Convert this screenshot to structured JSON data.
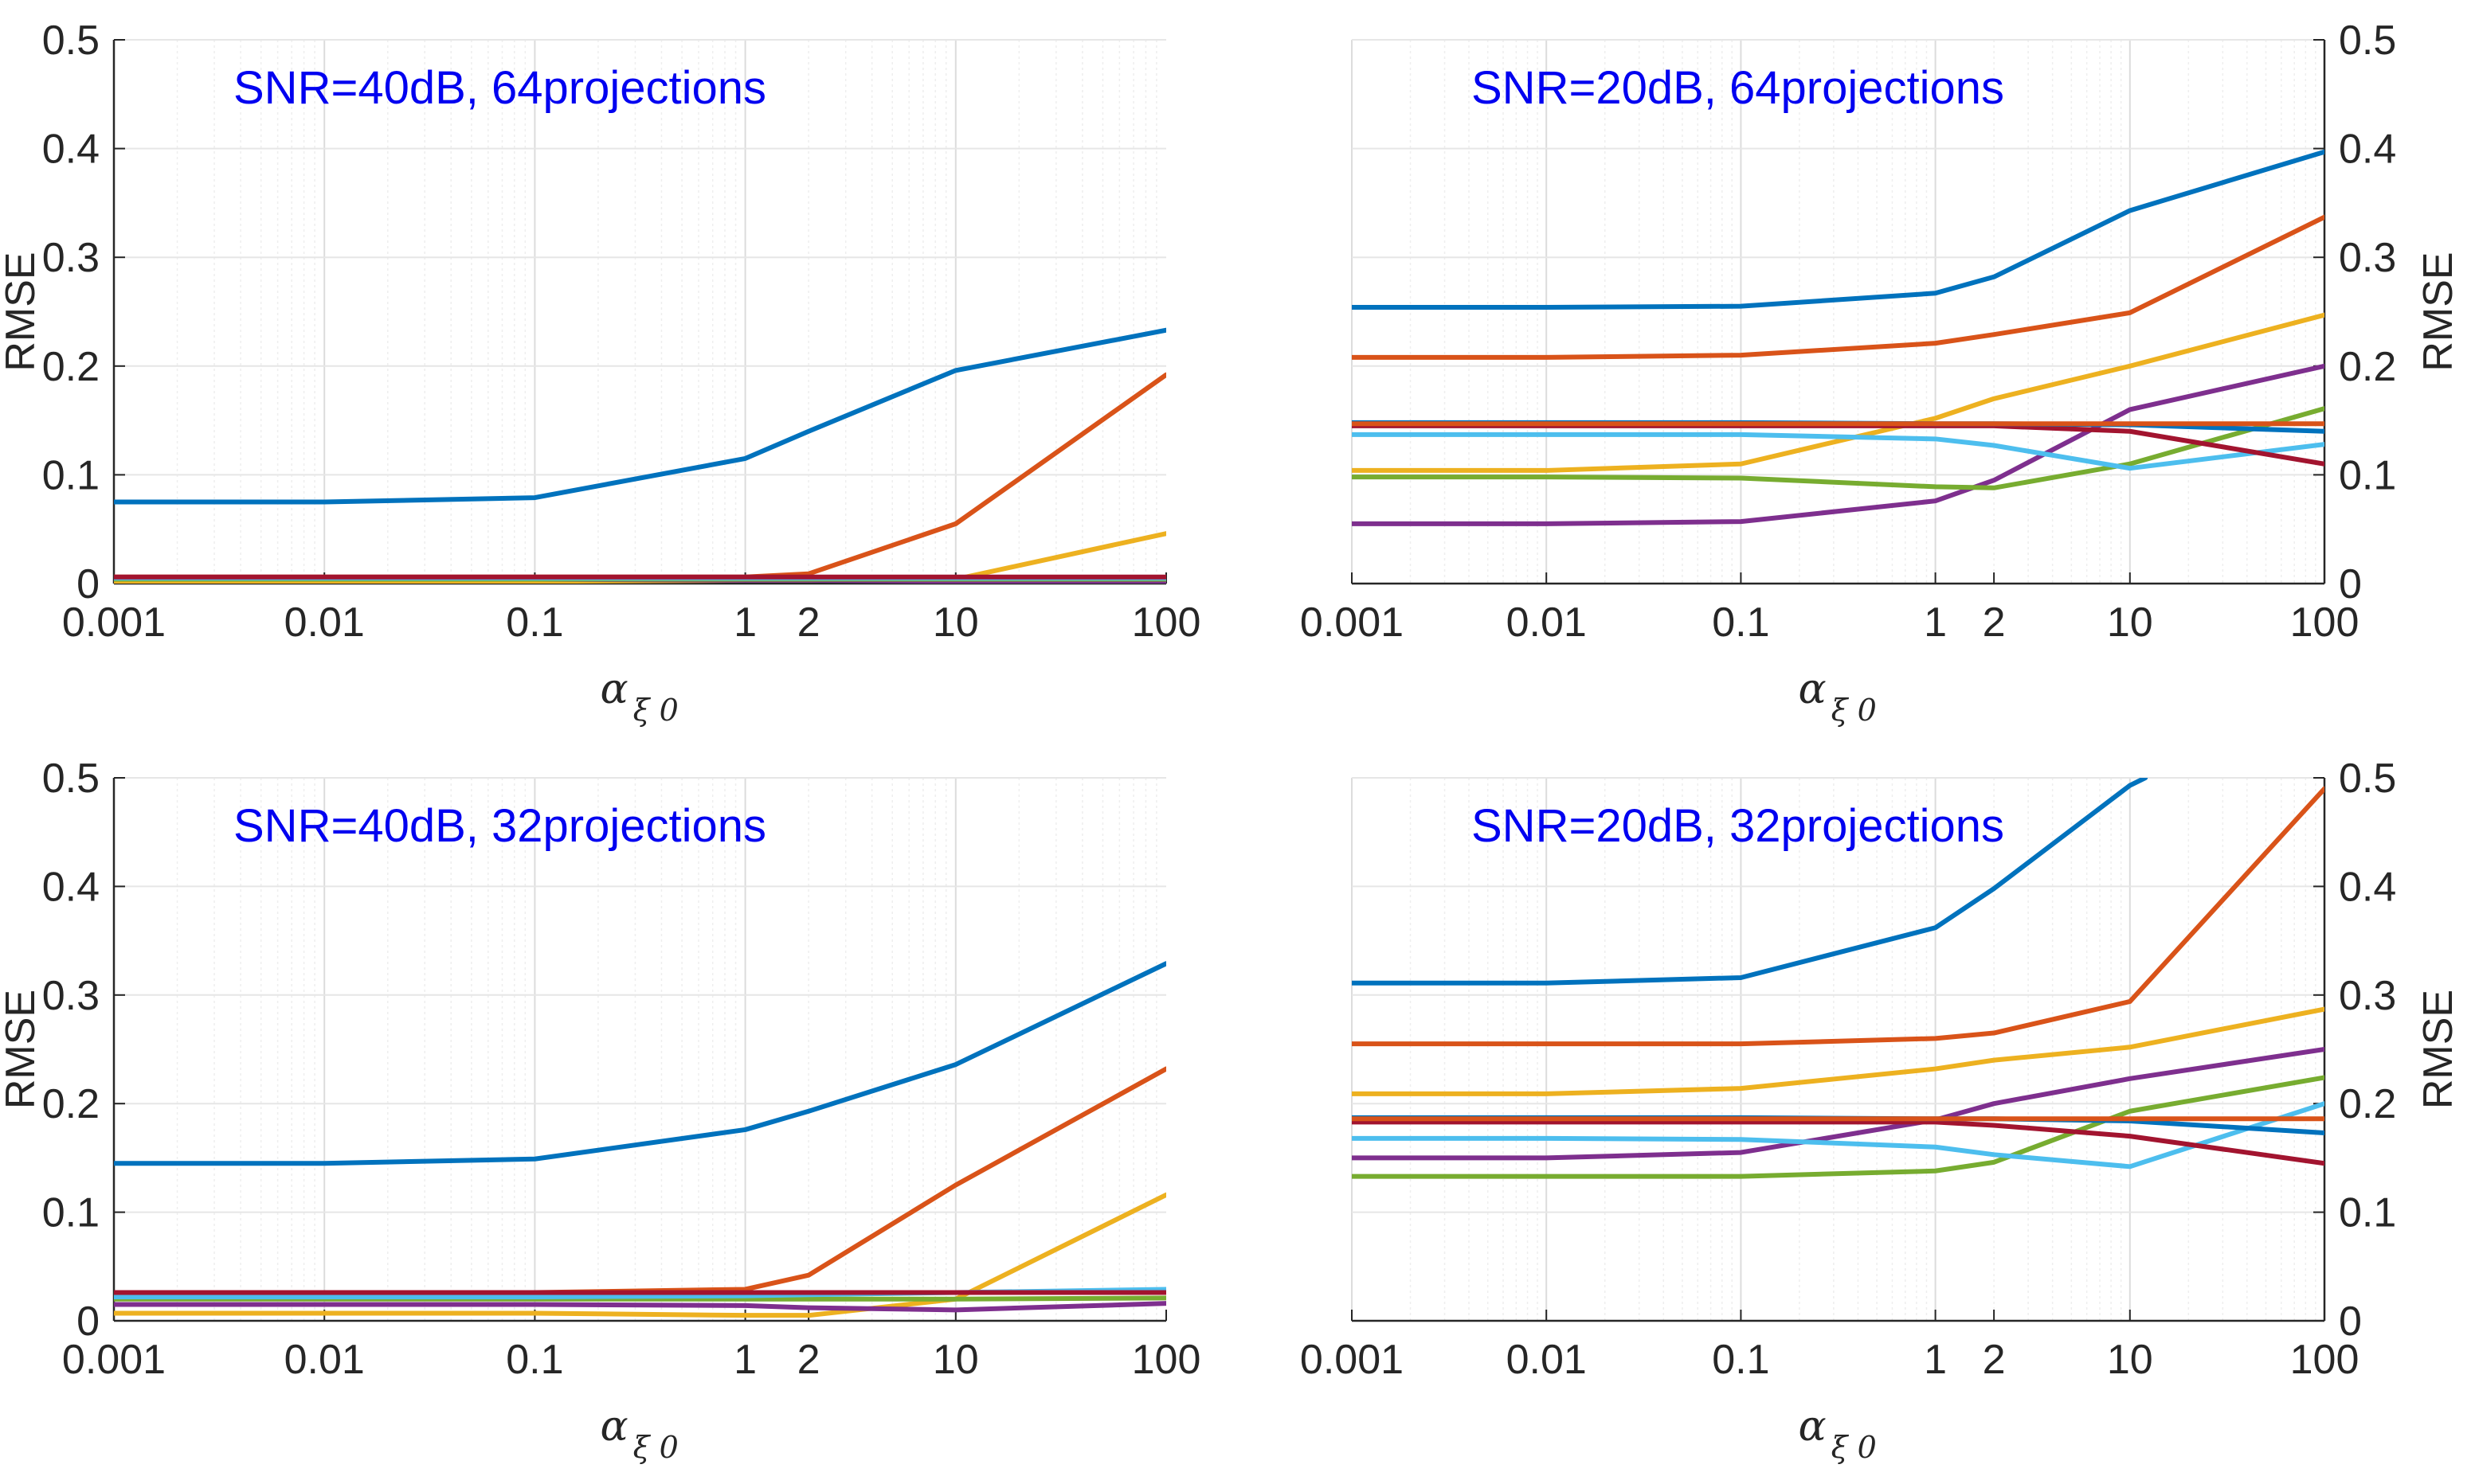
{
  "chart_data": [
    {
      "type": "line",
      "annotation": "SNR=40dB, 64projections",
      "xlabel": "α",
      "xlabel_sub": "ξ 0",
      "ylabel": "RMSE",
      "xscale": "log",
      "xlim": [
        0.001,
        100
      ],
      "ylim": [
        0,
        0.5
      ],
      "yaxis_side": "left",
      "xticks": [
        0.001,
        0.01,
        0.1,
        1,
        2,
        10,
        100
      ],
      "xticklabels": [
        "0.001",
        "0.01",
        "0.1",
        "1",
        "2",
        "10",
        "100"
      ],
      "yticks": [
        0,
        0.1,
        0.2,
        0.3,
        0.4,
        0.5
      ],
      "yticklabels": [
        "0",
        "0.1",
        "0.2",
        "0.3",
        "0.4",
        "0.5"
      ],
      "grid": true,
      "x": [
        0.001,
        0.01,
        0.1,
        1,
        2,
        10,
        100
      ],
      "series": [
        {
          "color": "#0072BD",
          "values": [
            0.075,
            0.075,
            0.079,
            0.115,
            0.14,
            0.196,
            0.233
          ]
        },
        {
          "color": "#D95319",
          "values": [
            0.006,
            0.006,
            0.006,
            0.006,
            0.009,
            0.055,
            0.192
          ]
        },
        {
          "color": "#EDB120",
          "values": [
            0.002,
            0.002,
            0.002,
            0.003,
            0.003,
            0.004,
            0.046
          ]
        },
        {
          "color": "#7E2F8E",
          "values": [
            0.004,
            0.004,
            0.004,
            0.003,
            0.003,
            0.002,
            0.002
          ]
        },
        {
          "color": "#77AC30",
          "values": [
            0.004,
            0.004,
            0.004,
            0.004,
            0.004,
            0.004,
            0.004
          ]
        },
        {
          "color": "#4DBEEE",
          "values": [
            0.005,
            0.005,
            0.005,
            0.005,
            0.005,
            0.005,
            0.005
          ]
        },
        {
          "color": "#A2142F",
          "values": [
            0.006,
            0.006,
            0.006,
            0.006,
            0.006,
            0.006,
            0.006
          ]
        }
      ]
    },
    {
      "type": "line",
      "annotation": "SNR=20dB, 64projections",
      "xlabel": "α",
      "xlabel_sub": "ξ 0",
      "ylabel": "RMSE",
      "xscale": "log",
      "xlim": [
        0.001,
        100
      ],
      "ylim": [
        0,
        0.5
      ],
      "yaxis_side": "right",
      "xticks": [
        0.001,
        0.01,
        0.1,
        1,
        2,
        10,
        100
      ],
      "xticklabels": [
        "0.001",
        "0.01",
        "0.1",
        "1",
        "2",
        "10",
        "100"
      ],
      "yticks": [
        0,
        0.1,
        0.2,
        0.3,
        0.4,
        0.5
      ],
      "yticklabels": [
        "0",
        "0.1",
        "0.2",
        "0.3",
        "0.4",
        "0.5"
      ],
      "grid": true,
      "x": [
        0.001,
        0.01,
        0.1,
        1,
        2,
        10,
        100
      ],
      "series": [
        {
          "color": "#0072BD",
          "values": [
            0.254,
            0.254,
            0.255,
            0.267,
            0.282,
            0.343,
            0.397
          ]
        },
        {
          "color": "#D95319",
          "values": [
            0.208,
            0.208,
            0.21,
            0.221,
            0.229,
            0.249,
            0.337
          ]
        },
        {
          "color": "#EDB120",
          "values": [
            0.104,
            0.104,
            0.11,
            0.152,
            0.17,
            0.2,
            0.247
          ]
        },
        {
          "color": "#7E2F8E",
          "values": [
            0.055,
            0.055,
            0.057,
            0.076,
            0.095,
            0.16,
            0.2
          ]
        },
        {
          "color": "#77AC30",
          "values": [
            0.098,
            0.098,
            0.097,
            0.089,
            0.088,
            0.11,
            0.161
          ]
        },
        {
          "color": "#4DBEEE",
          "values": [
            0.137,
            0.137,
            0.137,
            0.133,
            0.127,
            0.106,
            0.128
          ]
        },
        {
          "color": "#A2142F",
          "values": [
            0.145,
            0.145,
            0.145,
            0.145,
            0.145,
            0.14,
            0.11
          ]
        },
        {
          "color": "#0072BD",
          "values": [
            0.148,
            0.148,
            0.148,
            0.147,
            0.147,
            0.146,
            0.14
          ]
        },
        {
          "color": "#D95319",
          "values": [
            0.147,
            0.147,
            0.147,
            0.147,
            0.147,
            0.147,
            0.147
          ]
        }
      ]
    },
    {
      "type": "line",
      "annotation": "SNR=40dB, 32projections",
      "xlabel": "α",
      "xlabel_sub": "ξ 0",
      "ylabel": "RMSE",
      "xscale": "log",
      "xlim": [
        0.001,
        100
      ],
      "ylim": [
        0,
        0.5
      ],
      "yaxis_side": "left",
      "xticks": [
        0.001,
        0.01,
        0.1,
        1,
        2,
        10,
        100
      ],
      "xticklabels": [
        "0.001",
        "0.01",
        "0.1",
        "1",
        "2",
        "10",
        "100"
      ],
      "yticks": [
        0,
        0.1,
        0.2,
        0.3,
        0.4,
        0.5
      ],
      "yticklabels": [
        "0",
        "0.1",
        "0.2",
        "0.3",
        "0.4",
        "0.5"
      ],
      "grid": true,
      "x": [
        0.001,
        0.01,
        0.1,
        1,
        2,
        10,
        100
      ],
      "series": [
        {
          "color": "#0072BD",
          "values": [
            0.145,
            0.145,
            0.149,
            0.176,
            0.193,
            0.236,
            0.329
          ]
        },
        {
          "color": "#D95319",
          "values": [
            0.026,
            0.026,
            0.026,
            0.029,
            0.042,
            0.125,
            0.232
          ]
        },
        {
          "color": "#EDB120",
          "values": [
            0.007,
            0.007,
            0.007,
            0.005,
            0.005,
            0.02,
            0.116
          ]
        },
        {
          "color": "#7E2F8E",
          "values": [
            0.015,
            0.015,
            0.015,
            0.014,
            0.012,
            0.01,
            0.016
          ]
        },
        {
          "color": "#77AC30",
          "values": [
            0.02,
            0.02,
            0.02,
            0.02,
            0.02,
            0.02,
            0.021
          ]
        },
        {
          "color": "#4DBEEE",
          "values": [
            0.022,
            0.022,
            0.022,
            0.023,
            0.024,
            0.026,
            0.029
          ]
        },
        {
          "color": "#A2142F",
          "values": [
            0.026,
            0.026,
            0.026,
            0.026,
            0.026,
            0.026,
            0.026
          ]
        }
      ]
    },
    {
      "type": "line",
      "annotation": "SNR=20dB, 32projections",
      "xlabel": "α",
      "xlabel_sub": "ξ 0",
      "ylabel": "RMSE",
      "xscale": "log",
      "xlim": [
        0.001,
        100
      ],
      "ylim": [
        0,
        0.5
      ],
      "yaxis_side": "right",
      "xticks": [
        0.001,
        0.01,
        0.1,
        1,
        2,
        10,
        100
      ],
      "xticklabels": [
        "0.001",
        "0.01",
        "0.1",
        "1",
        "2",
        "10",
        "100"
      ],
      "yticks": [
        0,
        0.1,
        0.2,
        0.3,
        0.4,
        0.5
      ],
      "yticklabels": [
        "0",
        "0.1",
        "0.2",
        "0.3",
        "0.4",
        "0.5"
      ],
      "grid": true,
      "x": [
        0.001,
        0.01,
        0.1,
        1,
        2,
        10,
        12,
        100
      ],
      "series": [
        {
          "color": "#0072BD",
          "values": [
            0.311,
            0.311,
            0.316,
            0.362,
            0.398,
            0.493,
            0.5,
            null
          ]
        },
        {
          "color": "#D95319",
          "values": [
            0.255,
            0.255,
            0.255,
            0.26,
            0.265,
            0.294,
            null,
            0.49
          ]
        },
        {
          "color": "#EDB120",
          "values": [
            0.209,
            0.209,
            0.214,
            0.232,
            0.24,
            0.252,
            null,
            0.287
          ]
        },
        {
          "color": "#7E2F8E",
          "values": [
            0.15,
            0.15,
            0.155,
            0.185,
            0.2,
            0.223,
            null,
            0.25
          ]
        },
        {
          "color": "#77AC30",
          "values": [
            0.133,
            0.133,
            0.133,
            0.138,
            0.146,
            0.193,
            null,
            0.224
          ]
        },
        {
          "color": "#4DBEEE",
          "values": [
            0.168,
            0.168,
            0.167,
            0.16,
            0.153,
            0.142,
            null,
            0.2
          ]
        },
        {
          "color": "#A2142F",
          "values": [
            0.183,
            0.183,
            0.183,
            0.183,
            0.18,
            0.17,
            null,
            0.145
          ]
        },
        {
          "color": "#0072BD",
          "values": [
            0.187,
            0.187,
            0.187,
            0.186,
            0.186,
            0.184,
            null,
            0.173
          ]
        },
        {
          "color": "#D95319",
          "values": [
            0.186,
            0.186,
            0.186,
            0.186,
            0.186,
            0.186,
            null,
            0.186
          ]
        }
      ]
    }
  ]
}
